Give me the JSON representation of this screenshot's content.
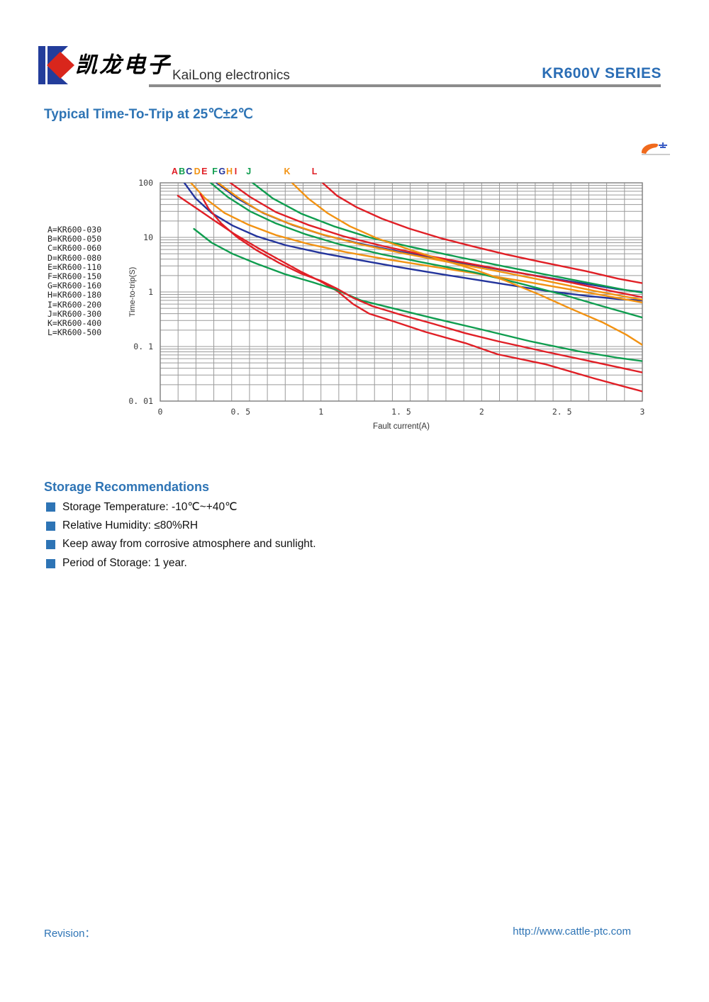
{
  "header": {
    "logo_chinese": "凯龙电子",
    "logo_text": "KaiLong electronics",
    "series_label": "KR600V SERIES"
  },
  "title": "Typical Time-To-Trip at 25℃±2℃",
  "chart_data": {
    "type": "line",
    "title": "",
    "xlabel": "Fault current(A)",
    "ylabel": "Time-to-trip(S)",
    "xlim": [
      0,
      3
    ],
    "ylim": [
      0.01,
      100
    ],
    "y_scale": "log",
    "grid": {
      "vertical_divisions": 27,
      "log_minor_horizontal": true,
      "color": "#9a9a9a"
    },
    "x_ticks": [
      {
        "value": 0,
        "label": "0"
      },
      {
        "value": 0.5,
        "label": "0. 5"
      },
      {
        "value": 1,
        "label": "1"
      },
      {
        "value": 1.5,
        "label": "1. 5"
      },
      {
        "value": 2,
        "label": "2"
      },
      {
        "value": 2.5,
        "label": "2. 5"
      },
      {
        "value": 3,
        "label": "3"
      }
    ],
    "y_ticks": [
      {
        "value": 100,
        "label": "100"
      },
      {
        "value": 10,
        "label": "10"
      },
      {
        "value": 1,
        "label": "1"
      },
      {
        "value": 0.1,
        "label": "0. 1"
      },
      {
        "value": 0.01,
        "label": "0. 01"
      }
    ],
    "legend_position": "left",
    "legend": [
      "A=KR600-030",
      "B=KR600-050",
      "C=KR600-060",
      "D=KR600-080",
      "E=KR600-110",
      "F=KR600-150",
      "G=KR600-160",
      "H=KR600-180",
      "I=KR600-200",
      "J=KR600-300",
      "K=KR600-400",
      "L=KR600-500"
    ],
    "colors": {
      "red": "#e01f26",
      "green": "#0f9d4f",
      "navy": "#23349c",
      "orange": "#f29212"
    },
    "curve_labels": [
      {
        "label": "A",
        "x": 0.09,
        "color": "red"
      },
      {
        "label": "B",
        "x": 0.135,
        "color": "green"
      },
      {
        "label": "C",
        "x": 0.18,
        "color": "navy"
      },
      {
        "label": "D",
        "x": 0.23,
        "color": "orange"
      },
      {
        "label": "E",
        "x": 0.275,
        "color": "red"
      },
      {
        "label": "F",
        "x": 0.34,
        "color": "green"
      },
      {
        "label": "G",
        "x": 0.385,
        "color": "navy"
      },
      {
        "label": "H",
        "x": 0.43,
        "color": "orange"
      },
      {
        "label": "I",
        "x": 0.47,
        "color": "red"
      },
      {
        "label": "J",
        "x": 0.55,
        "color": "green"
      },
      {
        "label": "K",
        "x": 0.79,
        "color": "orange"
      },
      {
        "label": "L",
        "x": 0.96,
        "color": "red"
      }
    ],
    "series": [
      {
        "name": "A",
        "model": "KR600-030",
        "color": "red",
        "points": [
          [
            0.11,
            58
          ],
          [
            0.22,
            35
          ],
          [
            0.34,
            20
          ],
          [
            0.46,
            11.6
          ],
          [
            0.6,
            6.6
          ],
          [
            0.74,
            3.9
          ],
          [
            0.87,
            2.4
          ],
          [
            1.0,
            1.55
          ],
          [
            1.1,
            1.05
          ],
          [
            1.2,
            0.6
          ],
          [
            1.3,
            0.4
          ],
          [
            1.45,
            0.29
          ],
          [
            1.65,
            0.185
          ],
          [
            1.9,
            0.115
          ],
          [
            2.1,
            0.072
          ],
          [
            2.4,
            0.047
          ],
          [
            2.7,
            0.026
          ],
          [
            3.0,
            0.015
          ]
        ]
      },
      {
        "name": "B",
        "model": "KR600-050",
        "color": "green",
        "points": [
          [
            0.21,
            14.3
          ],
          [
            0.32,
            8.0
          ],
          [
            0.45,
            5.0
          ],
          [
            0.6,
            3.3
          ],
          [
            0.78,
            2.1
          ],
          [
            0.95,
            1.5
          ],
          [
            1.1,
            1.08
          ],
          [
            1.25,
            0.7
          ],
          [
            1.45,
            0.5
          ],
          [
            1.7,
            0.33
          ],
          [
            2.0,
            0.205
          ],
          [
            2.3,
            0.125
          ],
          [
            2.6,
            0.082
          ],
          [
            2.85,
            0.062
          ],
          [
            3.0,
            0.054
          ]
        ]
      },
      {
        "name": "C",
        "model": "KR600-060",
        "color": "navy",
        "points": [
          [
            0.15,
            100
          ],
          [
            0.22,
            52
          ],
          [
            0.32,
            28
          ],
          [
            0.45,
            16.5
          ],
          [
            0.6,
            10.5
          ],
          [
            0.78,
            7.2
          ],
          [
            1.0,
            5.2
          ],
          [
            1.25,
            3.8
          ],
          [
            1.5,
            2.8
          ],
          [
            1.8,
            2.0
          ],
          [
            2.1,
            1.45
          ],
          [
            2.4,
            1.05
          ],
          [
            2.65,
            0.85
          ],
          [
            2.85,
            0.74
          ],
          [
            3.0,
            0.7
          ]
        ]
      },
      {
        "name": "D",
        "model": "KR600-080",
        "color": "orange",
        "points": [
          [
            0.18,
            108
          ],
          [
            0.28,
            52
          ],
          [
            0.4,
            28
          ],
          [
            0.55,
            17
          ],
          [
            0.72,
            11
          ],
          [
            0.92,
            7.6
          ],
          [
            1.15,
            5.4
          ],
          [
            1.4,
            4.0
          ],
          [
            1.7,
            2.9
          ],
          [
            2.0,
            2.1
          ],
          [
            2.3,
            1.5
          ],
          [
            2.6,
            1.05
          ],
          [
            2.8,
            0.82
          ],
          [
            3.0,
            0.64
          ]
        ]
      },
      {
        "name": "E",
        "model": "KR600-110",
        "color": "red",
        "points": [
          [
            0.25,
            62
          ],
          [
            0.3,
            34
          ],
          [
            0.38,
            18
          ],
          [
            0.48,
            10
          ],
          [
            0.6,
            5.8
          ],
          [
            0.74,
            3.4
          ],
          [
            0.88,
            2.15
          ],
          [
            1.0,
            1.6
          ],
          [
            1.1,
            1.15
          ],
          [
            1.2,
            0.78
          ],
          [
            1.32,
            0.55
          ],
          [
            1.5,
            0.38
          ],
          [
            1.7,
            0.26
          ],
          [
            1.9,
            0.175
          ],
          [
            2.1,
            0.125
          ],
          [
            2.4,
            0.08
          ],
          [
            2.7,
            0.052
          ],
          [
            3.0,
            0.0335
          ]
        ]
      },
      {
        "name": "F",
        "model": "KR600-150",
        "color": "green",
        "points": [
          [
            0.3,
            108
          ],
          [
            0.42,
            55
          ],
          [
            0.56,
            30
          ],
          [
            0.72,
            18
          ],
          [
            0.9,
            11.5
          ],
          [
            1.12,
            7.4
          ],
          [
            1.38,
            4.9
          ],
          [
            1.65,
            3.4
          ],
          [
            1.95,
            2.3
          ],
          [
            2.25,
            1.4
          ],
          [
            2.5,
            0.9
          ],
          [
            2.75,
            0.55
          ],
          [
            3.0,
            0.34
          ]
        ]
      },
      {
        "name": "G",
        "model": "KR600-160",
        "color": "navy",
        "points": [
          [
            0.35,
            100
          ],
          [
            0.48,
            52
          ],
          [
            0.64,
            28
          ],
          [
            0.82,
            17
          ],
          [
            1.02,
            11
          ],
          [
            1.25,
            7.6
          ],
          [
            1.5,
            5.4
          ],
          [
            1.8,
            3.7
          ],
          [
            2.1,
            2.6
          ],
          [
            2.4,
            1.85
          ],
          [
            2.65,
            1.4
          ],
          [
            2.85,
            1.12
          ],
          [
            3.0,
            1.0
          ]
        ]
      },
      {
        "name": "H",
        "model": "KR600-180",
        "color": "orange",
        "points": [
          [
            0.36,
            100
          ],
          [
            0.48,
            55
          ],
          [
            0.62,
            30
          ],
          [
            0.8,
            18
          ],
          [
            1.0,
            11.5
          ],
          [
            1.25,
            7.4
          ],
          [
            1.5,
            5.2
          ],
          [
            1.8,
            3.5
          ],
          [
            2.1,
            2.4
          ],
          [
            2.4,
            1.6
          ],
          [
            2.7,
            1.05
          ],
          [
            3.0,
            0.72
          ]
        ]
      },
      {
        "name": "I",
        "model": "KR600-200",
        "color": "red",
        "points": [
          [
            0.42,
            108
          ],
          [
            0.56,
            55
          ],
          [
            0.72,
            29
          ],
          [
            0.92,
            17
          ],
          [
            1.14,
            10.5
          ],
          [
            1.38,
            7.0
          ],
          [
            1.65,
            4.7
          ],
          [
            1.95,
            3.2
          ],
          [
            2.25,
            2.2
          ],
          [
            2.55,
            1.5
          ],
          [
            2.8,
            1.05
          ],
          [
            3.0,
            0.8
          ]
        ]
      },
      {
        "name": "J",
        "model": "KR600-300",
        "color": "green",
        "points": [
          [
            0.56,
            108
          ],
          [
            0.7,
            52
          ],
          [
            0.88,
            27
          ],
          [
            1.08,
            16
          ],
          [
            1.3,
            10
          ],
          [
            1.55,
            6.8
          ],
          [
            1.85,
            4.4
          ],
          [
            2.15,
            2.9
          ],
          [
            2.45,
            1.95
          ],
          [
            2.7,
            1.4
          ],
          [
            2.9,
            1.08
          ],
          [
            3.0,
            0.97
          ]
        ]
      },
      {
        "name": "K",
        "model": "KR600-400",
        "color": "orange",
        "points": [
          [
            0.82,
            100
          ],
          [
            0.92,
            52
          ],
          [
            1.04,
            28
          ],
          [
            1.18,
            16
          ],
          [
            1.35,
            9.6
          ],
          [
            1.55,
            6.0
          ],
          [
            1.75,
            3.9
          ],
          [
            1.95,
            2.6
          ],
          [
            2.15,
            1.6
          ],
          [
            2.35,
            0.92
          ],
          [
            2.55,
            0.5
          ],
          [
            2.75,
            0.28
          ],
          [
            2.9,
            0.165
          ],
          [
            3.0,
            0.107
          ]
        ]
      },
      {
        "name": "L",
        "model": "KR600-500",
        "color": "red",
        "points": [
          [
            1.01,
            100
          ],
          [
            1.1,
            58
          ],
          [
            1.22,
            36
          ],
          [
            1.38,
            22
          ],
          [
            1.55,
            14.5
          ],
          [
            1.75,
            9.6
          ],
          [
            1.95,
            6.8
          ],
          [
            2.15,
            4.9
          ],
          [
            2.4,
            3.4
          ],
          [
            2.65,
            2.4
          ],
          [
            2.85,
            1.75
          ],
          [
            3.0,
            1.45
          ]
        ]
      }
    ]
  },
  "storage": {
    "heading": "Storage Recommendations",
    "items": [
      "Storage Temperature: -10℃~+40℃",
      "Relative Humidity: ≤80%RH",
      "Keep away from corrosive atmosphere and sunlight.",
      "Period of Storage: 1 year."
    ]
  },
  "footer": {
    "revision_label": "Revision：",
    "url": "http://www.cattle-ptc.com"
  }
}
